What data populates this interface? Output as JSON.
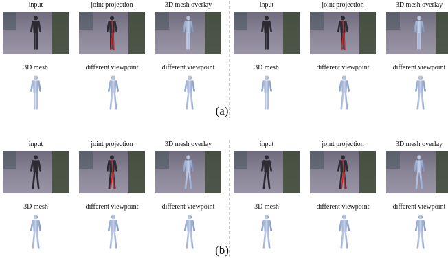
{
  "panels": [
    {
      "label": "(a)",
      "groups": [
        {
          "cells": [
            "input",
            "joint projection",
            "3D mesh overlay",
            "3D mesh",
            "different viewpoint",
            "different viewpoint"
          ]
        },
        {
          "cells": [
            "input",
            "joint projection",
            "3D mesh overlay",
            "3D mesh",
            "different viewpoint",
            "different viewpoint"
          ]
        }
      ]
    },
    {
      "label": "(b)",
      "groups": [
        {
          "cells": [
            "input",
            "joint projection",
            "3D mesh overlay",
            "3D mesh",
            "different viewpoint",
            "different viewpoint"
          ]
        },
        {
          "cells": [
            "input",
            "joint projection",
            "3D mesh overlay",
            "3D mesh",
            "different viewpoint",
            "different viewpoint"
          ]
        }
      ]
    }
  ]
}
